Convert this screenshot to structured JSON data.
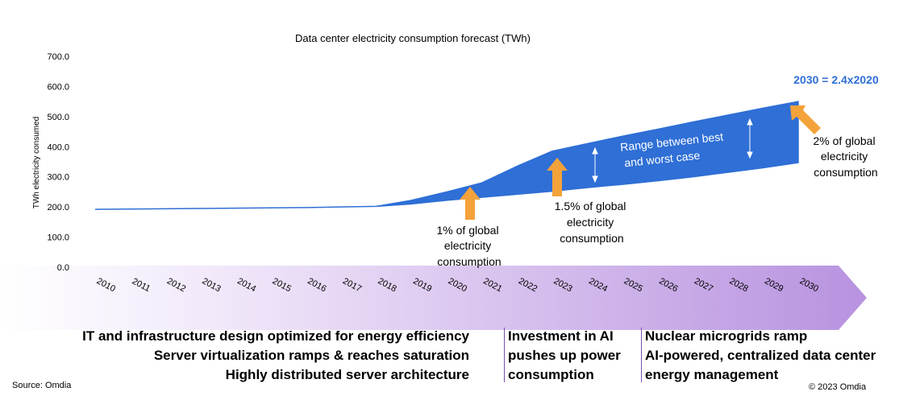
{
  "chart_data": {
    "type": "area",
    "title": "Data center electricity consumption forecast (TWh)",
    "ylabel": "TWh electricity consumed",
    "xlabel": "",
    "ylim": [
      0,
      700
    ],
    "yticks": [
      "0.0",
      "100.0",
      "200.0",
      "300.0",
      "400.0",
      "500.0",
      "600.0",
      "700.0"
    ],
    "categories": [
      "2010",
      "2011",
      "2012",
      "2013",
      "2014",
      "2015",
      "2016",
      "2017",
      "2018",
      "2019",
      "2020",
      "2021",
      "2022",
      "2023",
      "2024",
      "2025",
      "2026",
      "2027",
      "2028",
      "2029",
      "2030"
    ],
    "series": [
      {
        "values": [
          192,
          193,
          194,
          195,
          196,
          197,
          198,
          200,
          202,
          210,
          222,
          232,
          242,
          252,
          264,
          275,
          287,
          300,
          315,
          330,
          347
        ]
      },
      {
        "values": [
          192,
          193,
          194,
          195,
          196,
          197,
          198,
          200,
          202,
          222,
          250,
          280,
          335,
          385,
          410,
          435,
          458,
          482,
          505,
          528,
          550
        ]
      }
    ],
    "grid": false,
    "legend": "none",
    "color": "#2f6fd6",
    "annotations": {
      "a2020": [
        "1% of global",
        "electricity",
        "consumption"
      ],
      "a2023": [
        "1.5% of global",
        "electricity",
        "consumption"
      ],
      "a2030": [
        "2% of global",
        "electricity",
        "consumption"
      ],
      "range": [
        "Range between best",
        "and worst case"
      ],
      "ratio": "2030 = 2.4x2020"
    }
  },
  "bottom": {
    "left": [
      "IT and infrastructure design optimized for energy efficiency",
      "Server virtualization ramps & reaches saturation",
      "Highly distributed server architecture"
    ],
    "middle": [
      "Investment in AI",
      "pushes up power",
      "consumption"
    ],
    "right": [
      "Nuclear microgrids ramp",
      "AI-powered, centralized data center",
      "energy management"
    ]
  },
  "source": "Source: Omdia",
  "copyright": "© 2023 Omdia",
  "colors": {
    "area": "#2f6fd6",
    "arrow": "#f4a23a",
    "timeline_start": "#ffffff",
    "timeline_end": "#b892df"
  }
}
